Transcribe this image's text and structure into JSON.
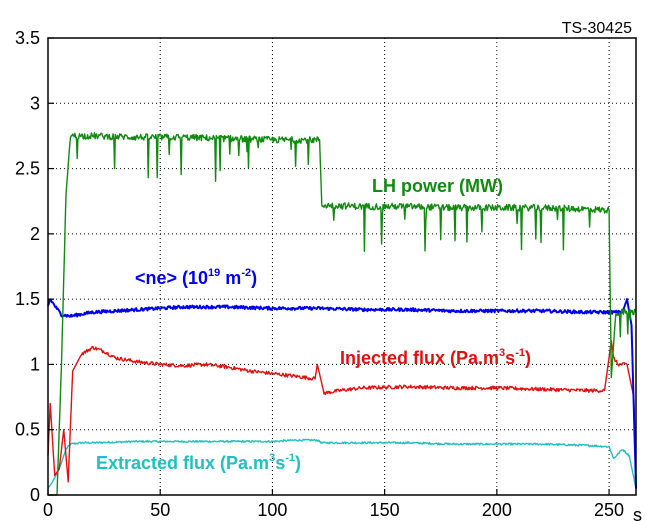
{
  "chart_data": {
    "type": "line",
    "annotation": "TS-30425",
    "x_unit": "s",
    "xlim": [
      0,
      262
    ],
    "ylim": [
      0,
      3.5
    ],
    "x_ticks": [
      0,
      50,
      100,
      150,
      200,
      250
    ],
    "y_ticks": [
      0,
      0.5,
      1,
      1.5,
      2,
      2.5,
      3,
      3.5
    ],
    "y_tick_labels": [
      "0",
      "0.5",
      "1",
      "1.5",
      "2",
      "2.5",
      "3",
      "3.5"
    ],
    "grid": true,
    "legend": "inline labels",
    "series": [
      {
        "name": "LH power (MW)",
        "label_main": "LH power (MW)",
        "color": "#128a12",
        "x": [
          0,
          4,
          6,
          8,
          10,
          20,
          40,
          60,
          80,
          100,
          115,
          121,
          122,
          140,
          160,
          180,
          200,
          220,
          240,
          250,
          251,
          253,
          256,
          258,
          260,
          262
        ],
        "y": [
          0,
          0,
          1.0,
          2.3,
          2.75,
          2.75,
          2.74,
          2.74,
          2.73,
          2.72,
          2.72,
          2.72,
          2.22,
          2.21,
          2.21,
          2.2,
          2.2,
          2.2,
          2.19,
          2.18,
          0.9,
          1.4,
          1.4,
          1.4,
          1.4,
          1.4
        ]
      },
      {
        "name": "<ne> (10^19 m^-2)",
        "label_parts": [
          "<ne> (10",
          "19",
          " m",
          "-2",
          ")"
        ],
        "color": "#0000ee",
        "x": [
          0,
          1,
          3,
          6,
          10,
          20,
          40,
          60,
          80,
          100,
          120,
          140,
          160,
          180,
          200,
          220,
          240,
          250,
          256,
          258,
          260,
          262
        ],
        "y": [
          1.45,
          1.5,
          1.45,
          1.38,
          1.37,
          1.4,
          1.42,
          1.44,
          1.44,
          1.43,
          1.43,
          1.42,
          1.42,
          1.41,
          1.41,
          1.41,
          1.4,
          1.4,
          1.4,
          1.5,
          1.3,
          0.05
        ]
      },
      {
        "name": "Injected flux (Pa.m^3 s^-1)",
        "label_parts": [
          "Injected flux (Pa.m",
          "3",
          "s",
          "-1",
          ")"
        ],
        "color": "#e01010",
        "x": [
          0,
          1,
          3,
          5,
          7,
          9,
          11,
          15,
          20,
          25,
          30,
          40,
          50,
          60,
          70,
          80,
          90,
          100,
          110,
          119,
          120,
          123,
          130,
          140,
          160,
          180,
          200,
          220,
          240,
          248,
          251,
          252,
          254,
          258,
          261,
          262
        ],
        "y": [
          0.3,
          0.7,
          0.15,
          0.2,
          0.5,
          0.1,
          0.95,
          1.08,
          1.13,
          1.1,
          1.05,
          1.02,
          1.0,
          0.99,
          1.0,
          0.98,
          0.95,
          0.93,
          0.91,
          0.89,
          1.0,
          0.78,
          0.8,
          0.82,
          0.83,
          0.82,
          0.82,
          0.81,
          0.8,
          0.8,
          1.18,
          1.05,
          1.0,
          1.0,
          0.75,
          0.05
        ]
      },
      {
        "name": "Extracted flux (Pa.m^3 s^-1)",
        "label_parts": [
          "Extracted flux (Pa.m",
          "3",
          "s",
          "-1",
          ")"
        ],
        "color": "#20c0c0",
        "x": [
          0,
          2,
          5,
          8,
          10,
          15,
          20,
          40,
          60,
          80,
          100,
          110,
          120,
          122,
          140,
          160,
          180,
          200,
          220,
          240,
          250,
          252,
          256,
          259,
          262
        ],
        "y": [
          0.05,
          0.1,
          0.2,
          0.35,
          0.39,
          0.4,
          0.4,
          0.41,
          0.41,
          0.41,
          0.41,
          0.42,
          0.42,
          0.4,
          0.4,
          0.4,
          0.39,
          0.39,
          0.39,
          0.38,
          0.37,
          0.28,
          0.35,
          0.3,
          0.05
        ]
      }
    ]
  }
}
